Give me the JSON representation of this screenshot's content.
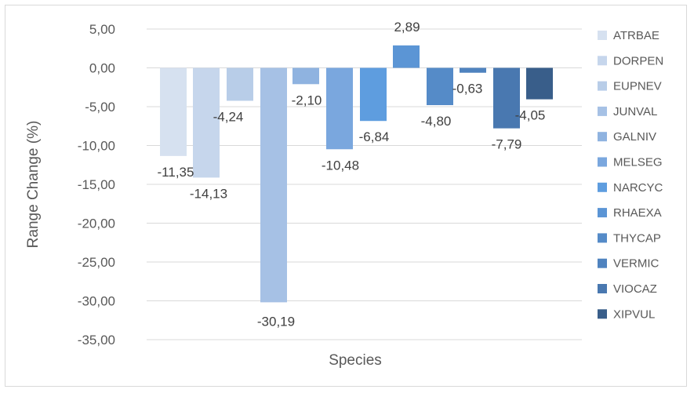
{
  "chart_data": {
    "type": "bar",
    "title": "",
    "xlabel": "Species",
    "ylabel": "Range Change (%)",
    "ylim": [
      -35,
      5
    ],
    "ytick_step": 5,
    "yticks": [
      "5,00",
      "0,00",
      "-5,00",
      "-10,00",
      "-15,00",
      "-20,00",
      "-25,00",
      "-30,00",
      "-35,00"
    ],
    "grid": true,
    "legend_position": "right",
    "series": [
      {
        "name": "ATRBAE",
        "value": -11.35,
        "label": "-11,35",
        "color": "#d6e1f0"
      },
      {
        "name": "DORPEN",
        "value": -14.13,
        "label": "-14,13",
        "color": "#c6d6ec"
      },
      {
        "name": "EUPNEV",
        "value": -4.24,
        "label": "-4,24",
        "color": "#b8cde8"
      },
      {
        "name": "JUNVAL",
        "value": -30.19,
        "label": "-30,19",
        "color": "#a6c1e5"
      },
      {
        "name": "GALNIV",
        "value": -2.1,
        "label": "-2,10",
        "color": "#8fb3e0"
      },
      {
        "name": "MELSEG",
        "value": -10.48,
        "label": "-10,48",
        "color": "#7aa7de"
      },
      {
        "name": "NARCYC",
        "value": -6.84,
        "label": "-6,84",
        "color": "#5e9ddf"
      },
      {
        "name": "RHAEXA",
        "value": 2.89,
        "label": "2,89",
        "color": "#5b95d5"
      },
      {
        "name": "THYCAP",
        "value": -4.8,
        "label": "-4,80",
        "color": "#558bc8"
      },
      {
        "name": "VERMIC",
        "value": -0.63,
        "label": "-0,63",
        "color": "#4f83bf"
      },
      {
        "name": "VIOCAZ",
        "value": -7.79,
        "label": "-7,79",
        "color": "#4978b0"
      },
      {
        "name": "XIPVUL",
        "value": -4.05,
        "label": "-4,05",
        "color": "#395e8a"
      }
    ]
  }
}
